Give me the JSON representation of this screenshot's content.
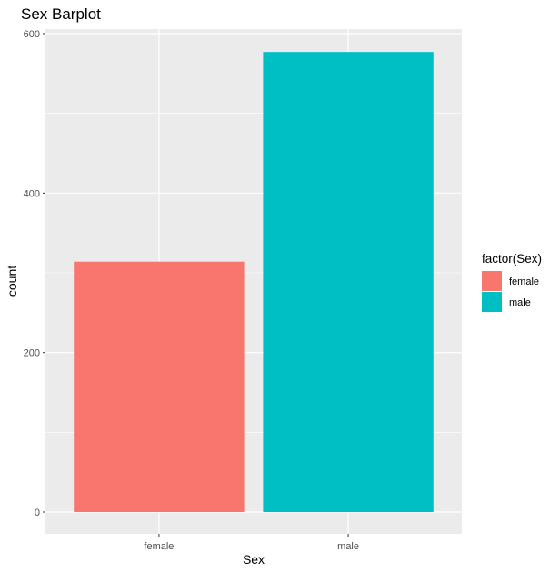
{
  "chart_data": {
    "type": "bar",
    "title": "Sex Barplot",
    "xlabel": "Sex",
    "ylabel": "count",
    "categories": [
      "female",
      "male"
    ],
    "values": [
      314,
      577
    ],
    "colors": [
      "#F8766D",
      "#00BFC4"
    ],
    "ylim": [
      0,
      604
    ],
    "yticks": [
      0,
      200,
      400,
      600
    ],
    "grid": true,
    "legend": {
      "title": "factor(Sex)",
      "placement": "right",
      "entries": [
        "female",
        "male"
      ]
    }
  }
}
